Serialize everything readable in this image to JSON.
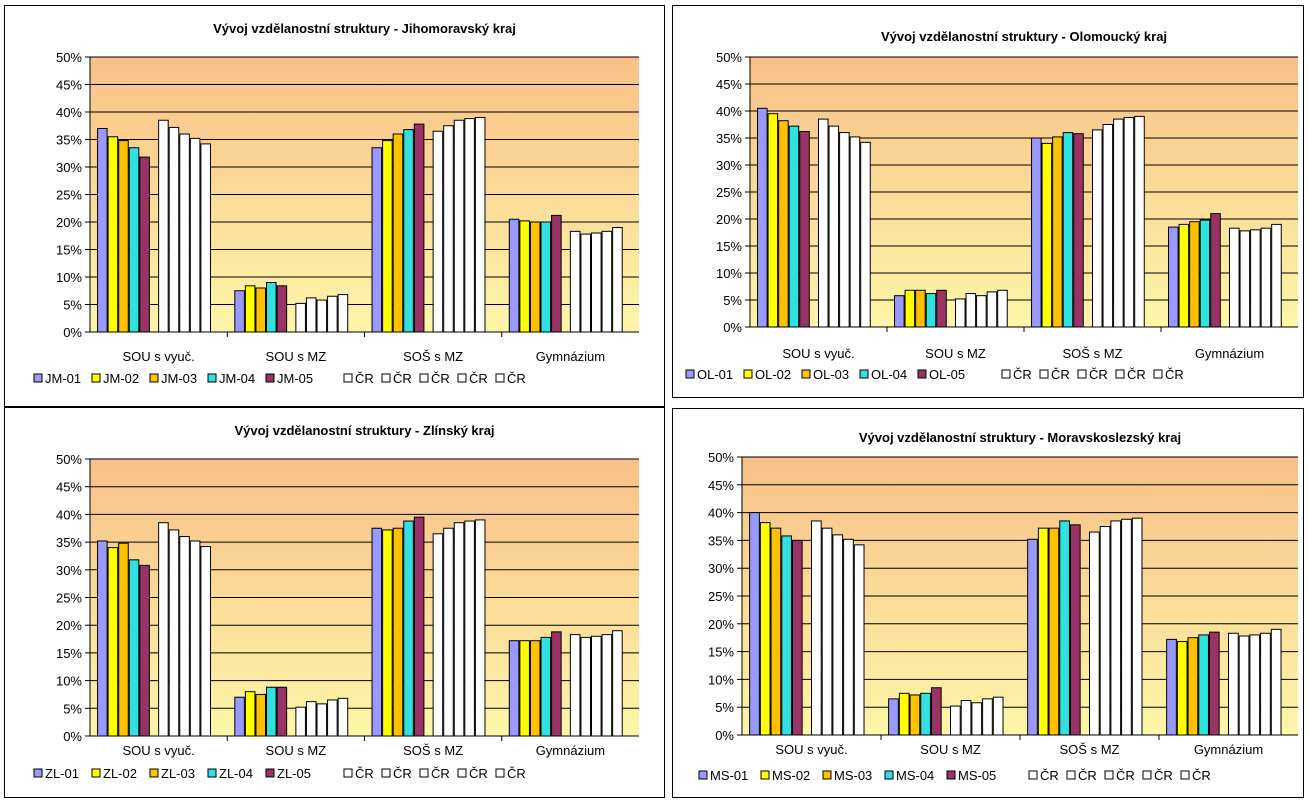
{
  "colors": {
    "plot_bg_top": "#f8c088",
    "plot_bg_bottom": "#fdf6a8",
    "gridline": "#000000",
    "regional_series": [
      "#9999ff",
      "#ffff00",
      "#ffc000",
      "#33e0e0",
      "#993366"
    ],
    "national_series": "#ffffff",
    "bar_outline": "#000000"
  },
  "chart_data": [
    {
      "type": "bar",
      "title": "Vývoj vzdělanostní struktury - Jihomoravský kraj",
      "categories": [
        "SOU s vyuč.",
        "SOU s MZ",
        "SOŠ s MZ",
        "Gymnázium"
      ],
      "ylim": [
        0,
        50
      ],
      "yticks": [
        "0%",
        "5%",
        "10%",
        "15%",
        "20%",
        "25%",
        "30%",
        "35%",
        "40%",
        "45%",
        "50%"
      ],
      "grid": true,
      "legend_position": "bottom",
      "series": [
        {
          "name": "JM-01",
          "values": [
            37.0,
            7.5,
            33.5,
            20.5
          ]
        },
        {
          "name": "JM-02",
          "values": [
            35.5,
            8.4,
            34.8,
            20.2
          ]
        },
        {
          "name": "JM-03",
          "values": [
            34.8,
            8.0,
            36.0,
            20.0
          ]
        },
        {
          "name": "JM-04",
          "values": [
            33.5,
            9.0,
            36.8,
            20.0
          ]
        },
        {
          "name": "JM-05",
          "values": [
            31.8,
            8.4,
            37.8,
            21.2
          ]
        },
        {
          "name": "ČR",
          "values": [
            38.5,
            5.2,
            36.5,
            18.3
          ]
        },
        {
          "name": "ČR",
          "values": [
            37.2,
            6.2,
            37.5,
            17.8
          ]
        },
        {
          "name": "ČR",
          "values": [
            36.0,
            5.8,
            38.5,
            18.0
          ]
        },
        {
          "name": "ČR",
          "values": [
            35.2,
            6.5,
            38.8,
            18.3
          ]
        },
        {
          "name": "ČR",
          "values": [
            34.2,
            6.8,
            39.0,
            19.0
          ]
        }
      ]
    },
    {
      "type": "bar",
      "title": "Vývoj vzdělanostní struktury - Olomoucký kraj",
      "categories": [
        "SOU s vyuč.",
        "SOU s MZ",
        "SOŠ s MZ",
        "Gymnázium"
      ],
      "ylim": [
        0,
        50
      ],
      "yticks": [
        "0%",
        "5%",
        "10%",
        "15%",
        "20%",
        "25%",
        "30%",
        "35%",
        "40%",
        "45%",
        "50%"
      ],
      "grid": true,
      "legend_position": "bottom",
      "series": [
        {
          "name": "OL-01",
          "values": [
            40.5,
            5.8,
            35.0,
            18.5
          ]
        },
        {
          "name": "OL-02",
          "values": [
            39.5,
            6.8,
            34.0,
            19.0
          ]
        },
        {
          "name": "OL-03",
          "values": [
            38.2,
            6.8,
            35.2,
            19.5
          ]
        },
        {
          "name": "OL-04",
          "values": [
            37.2,
            6.2,
            36.0,
            19.8
          ]
        },
        {
          "name": "OL-05",
          "values": [
            36.2,
            6.8,
            35.8,
            21.0
          ]
        },
        {
          "name": "ČR",
          "values": [
            38.5,
            5.2,
            36.5,
            18.3
          ]
        },
        {
          "name": "ČR",
          "values": [
            37.2,
            6.2,
            37.5,
            17.8
          ]
        },
        {
          "name": "ČR",
          "values": [
            36.0,
            5.8,
            38.5,
            18.0
          ]
        },
        {
          "name": "ČR",
          "values": [
            35.2,
            6.5,
            38.8,
            18.3
          ]
        },
        {
          "name": "ČR",
          "values": [
            34.2,
            6.8,
            39.0,
            19.0
          ]
        }
      ]
    },
    {
      "type": "bar",
      "title": "Vývoj vzdělanostní struktury - Zlínský kraj",
      "categories": [
        "SOU s vyuč.",
        "SOU s MZ",
        "SOŠ s MZ",
        "Gymnázium"
      ],
      "ylim": [
        0,
        50
      ],
      "yticks": [
        "0%",
        "5%",
        "10%",
        "15%",
        "20%",
        "25%",
        "30%",
        "35%",
        "40%",
        "45%",
        "50%"
      ],
      "grid": true,
      "legend_position": "bottom",
      "series": [
        {
          "name": "ZL-01",
          "values": [
            35.2,
            7.0,
            37.5,
            17.2
          ]
        },
        {
          "name": "ZL-02",
          "values": [
            34.0,
            8.0,
            37.2,
            17.2
          ]
        },
        {
          "name": "ZL-03",
          "values": [
            34.8,
            7.5,
            37.5,
            17.2
          ]
        },
        {
          "name": "ZL-04",
          "values": [
            31.8,
            8.8,
            38.8,
            17.8
          ]
        },
        {
          "name": "ZL-05",
          "values": [
            30.8,
            8.8,
            39.5,
            18.8
          ]
        },
        {
          "name": "ČR",
          "values": [
            38.5,
            5.2,
            36.5,
            18.3
          ]
        },
        {
          "name": "ČR",
          "values": [
            37.2,
            6.2,
            37.5,
            17.8
          ]
        },
        {
          "name": "ČR",
          "values": [
            36.0,
            5.8,
            38.5,
            18.0
          ]
        },
        {
          "name": "ČR",
          "values": [
            35.2,
            6.5,
            38.8,
            18.3
          ]
        },
        {
          "name": "ČR",
          "values": [
            34.2,
            6.8,
            39.0,
            19.0
          ]
        }
      ]
    },
    {
      "type": "bar",
      "title": "Vývoj vzdělanostní struktury - Moravskoslezský kraj",
      "categories": [
        "SOU s vyuč.",
        "SOU s MZ",
        "SOŠ s MZ",
        "Gymnázium"
      ],
      "ylim": [
        0,
        50
      ],
      "yticks": [
        "0%",
        "5%",
        "10%",
        "15%",
        "20%",
        "25%",
        "30%",
        "35%",
        "40%",
        "45%",
        "50%"
      ],
      "grid": true,
      "legend_position": "bottom",
      "series": [
        {
          "name": "MS-01",
          "values": [
            40.0,
            6.5,
            35.2,
            17.2
          ]
        },
        {
          "name": "MS-02",
          "values": [
            38.2,
            7.5,
            37.2,
            16.8
          ]
        },
        {
          "name": "MS-03",
          "values": [
            37.2,
            7.2,
            37.2,
            17.5
          ]
        },
        {
          "name": "MS-04",
          "values": [
            35.8,
            7.5,
            38.5,
            18.0
          ]
        },
        {
          "name": "MS-05",
          "values": [
            35.0,
            8.5,
            37.8,
            18.5
          ]
        },
        {
          "name": "ČR",
          "values": [
            38.5,
            5.2,
            36.5,
            18.3
          ]
        },
        {
          "name": "ČR",
          "values": [
            37.2,
            6.2,
            37.5,
            17.8
          ]
        },
        {
          "name": "ČR",
          "values": [
            36.0,
            5.8,
            38.5,
            18.0
          ]
        },
        {
          "name": "ČR",
          "values": [
            35.2,
            6.5,
            38.8,
            18.3
          ]
        },
        {
          "name": "ČR",
          "values": [
            34.2,
            6.8,
            39.0,
            19.0
          ]
        }
      ]
    }
  ]
}
